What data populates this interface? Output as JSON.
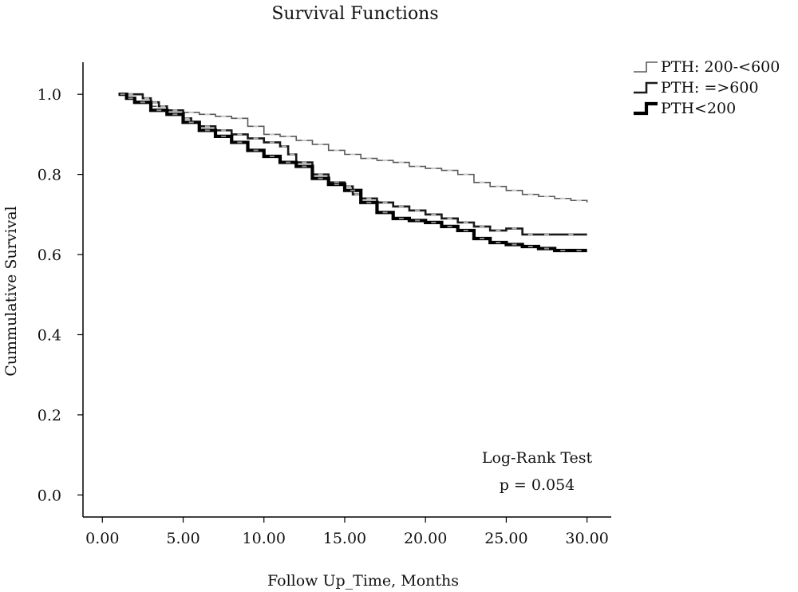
{
  "chart_data": {
    "type": "line",
    "title": "Survival Functions",
    "xlabel": "Follow Up_Time, Months",
    "ylabel": "Cummulative Survival",
    "xlim": [
      -1.2,
      31.5
    ],
    "ylim": [
      -0.055,
      1.08
    ],
    "x_ticks": [
      0,
      5,
      10,
      15,
      20,
      25,
      30
    ],
    "x_tick_labels": [
      "0.00",
      "5.00",
      "10.00",
      "15.00",
      "20.00",
      "25.00",
      "30.00"
    ],
    "y_ticks": [
      0,
      0.2,
      0.4,
      0.6,
      0.8,
      1.0
    ],
    "y_tick_labels": [
      "0.0",
      "0.2",
      "0.4",
      "0.6",
      "0.8",
      "1.0"
    ],
    "legend": {
      "placement": "top-right",
      "entries": [
        "PTH: 200-<600",
        "PTH: =>600",
        "PTH<200"
      ]
    },
    "annotation": {
      "line1": "Log-Rank Test",
      "line2": "p = 0.054"
    },
    "series": [
      {
        "name": "PTH: 200-<600",
        "color": "#5a5a5a",
        "censor_color": "#c8c8c8",
        "step": true,
        "x": [
          1,
          1.5,
          2,
          3,
          4,
          5,
          6,
          7,
          8,
          9,
          10,
          11,
          12,
          13,
          14,
          15,
          16,
          17,
          18,
          19,
          20,
          21,
          22,
          23,
          24,
          25,
          26,
          27,
          28,
          29,
          30
        ],
        "y": [
          1.0,
          0.99,
          0.98,
          0.97,
          0.96,
          0.955,
          0.95,
          0.945,
          0.94,
          0.92,
          0.9,
          0.895,
          0.885,
          0.875,
          0.86,
          0.85,
          0.84,
          0.835,
          0.83,
          0.82,
          0.815,
          0.81,
          0.8,
          0.78,
          0.77,
          0.76,
          0.75,
          0.745,
          0.74,
          0.735,
          0.73
        ]
      },
      {
        "name": "PTH: =>600",
        "color": "#1a1a1a",
        "censor_color": "#b0b0b0",
        "step": true,
        "x": [
          1,
          2.5,
          3,
          3.5,
          4,
          5,
          5.5,
          6,
          7,
          8,
          9,
          10,
          11,
          11.5,
          12,
          13,
          14,
          15,
          15.5,
          16,
          17,
          18,
          19,
          20,
          21,
          22,
          23,
          24,
          25,
          26,
          27,
          28,
          30
        ],
        "y": [
          1.0,
          0.99,
          0.98,
          0.97,
          0.96,
          0.94,
          0.93,
          0.92,
          0.91,
          0.9,
          0.89,
          0.88,
          0.87,
          0.85,
          0.83,
          0.8,
          0.78,
          0.77,
          0.75,
          0.74,
          0.73,
          0.72,
          0.71,
          0.7,
          0.69,
          0.68,
          0.67,
          0.66,
          0.665,
          0.65,
          0.65,
          0.65,
          0.65
        ]
      },
      {
        "name": "PTH<200",
        "color": "#000000",
        "censor_color": "#8c8c8c",
        "step": true,
        "x": [
          1,
          1.5,
          2,
          3,
          4,
          5,
          6,
          7,
          8,
          9,
          10,
          11,
          12,
          13,
          14,
          15,
          16,
          17,
          18,
          19,
          20,
          21,
          22,
          23,
          24,
          25,
          26,
          27,
          28,
          29,
          30
        ],
        "y": [
          1.0,
          0.99,
          0.98,
          0.96,
          0.95,
          0.93,
          0.91,
          0.895,
          0.88,
          0.86,
          0.845,
          0.83,
          0.82,
          0.79,
          0.775,
          0.76,
          0.73,
          0.705,
          0.69,
          0.685,
          0.68,
          0.67,
          0.66,
          0.64,
          0.63,
          0.625,
          0.62,
          0.615,
          0.61,
          0.61,
          0.61
        ]
      }
    ]
  }
}
